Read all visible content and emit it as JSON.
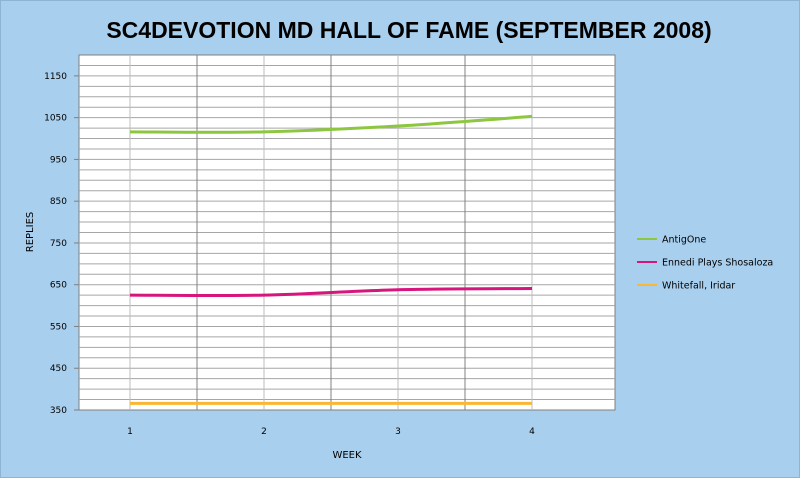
{
  "chart_data": {
    "type": "line",
    "title": "SC4DEVOTION MD HALL OF FAME (SEPTEMBER 2008)",
    "xlabel": "WEEK",
    "ylabel": "REPLIES",
    "x": [
      1,
      2,
      3,
      4
    ],
    "x_tick_labels": [
      "1",
      "2",
      "3",
      "4"
    ],
    "ylim": [
      350,
      1200
    ],
    "y_tick_labels": [
      "350",
      "450",
      "550",
      "650",
      "750",
      "850",
      "950",
      "1050",
      "1150"
    ],
    "grid": true,
    "legend_position": "right",
    "series": [
      {
        "name": "AntigOne",
        "color": "#8dc63f",
        "values": [
          1016,
          1016,
          1030,
          1053
        ]
      },
      {
        "name": "Ennedi Plays Shosaloza",
        "color": "#d6157d",
        "values": [
          625,
          625,
          638,
          641
        ]
      },
      {
        "name": "Whitefall, Iridar",
        "color": "#f9b733",
        "values": [
          366,
          366,
          366,
          366
        ]
      }
    ]
  }
}
